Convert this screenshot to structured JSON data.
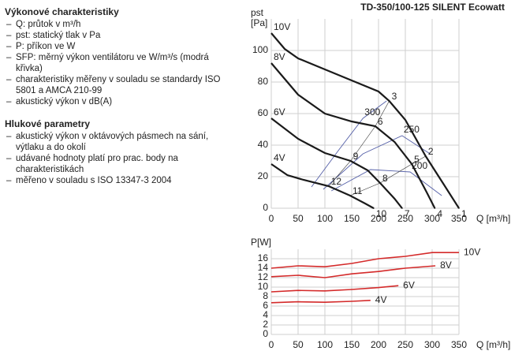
{
  "text": {
    "sections": [
      {
        "heading": "Výkonové charakteristiky",
        "items": [
          "Q: průtok v m³/h",
          "pst: statický tlak v Pa",
          "P: příkon ve W",
          "SFP: měrný výkon ventilátoru ve W/m³/s (modrá křivka)",
          "charakteristiky měřeny v souladu se standardy ISO 5801 a AMCA 210-99",
          "akustický výkon v dB(A)"
        ]
      },
      {
        "heading": "Hlukové parametry",
        "items": [
          "akustický výkon v oktávových pásmech na sání, výtlaku a do okolí",
          "udávané hodnoty platí pro prac. body na charakteristikách",
          "měřeno v souladu s ISO 13347-3 2004"
        ]
      }
    ]
  },
  "chart_data": [
    {
      "type": "line",
      "title": "TD-350/100-125 SILENT Ecowatt",
      "y_label": "pst",
      "y_unit": "[Pa]",
      "x_label": "Q [m³/h]",
      "xlim": [
        0,
        350
      ],
      "xticks": [
        0,
        50,
        100,
        150,
        200,
        250,
        300,
        350
      ],
      "ylim": [
        0,
        120
      ],
      "yticks": [
        0,
        20,
        40,
        60,
        80,
        100
      ],
      "grid": true,
      "label_position": "start",
      "series": [
        {
          "name": "10V",
          "color": "#1a1a1a",
          "x": [
            0,
            25,
            50,
            100,
            150,
            200,
            220,
            250,
            288,
            320,
            350
          ],
          "values": [
            111,
            101,
            95,
            88,
            81,
            74,
            68,
            56,
            33,
            16,
            0
          ]
        },
        {
          "name": "8V",
          "color": "#1a1a1a",
          "x": [
            0,
            50,
            100,
            150,
            194,
            230,
            262,
            290,
            305
          ],
          "values": [
            92,
            72,
            60,
            55,
            52,
            42,
            28,
            10,
            0
          ]
        },
        {
          "name": "6V",
          "color": "#1a1a1a",
          "x": [
            0,
            50,
            100,
            148,
            180,
            203,
            230,
            244
          ],
          "values": [
            57,
            44,
            35,
            30,
            24,
            16,
            6,
            0
          ]
        },
        {
          "name": "4V",
          "color": "#1a1a1a",
          "x": [
            0,
            30,
            60,
            107,
            147,
            175,
            191
          ],
          "values": [
            28,
            21,
            18,
            14,
            8,
            3,
            0
          ]
        }
      ],
      "sfp_curves": [
        {
          "name": "300",
          "color": "#5560a8",
          "x": [
            75,
            126,
            171,
            215
          ],
          "values": [
            13.5,
            37,
            57,
            68
          ]
        },
        {
          "name": "250",
          "color": "#5560a8",
          "x": [
            97,
            171,
            244,
            296
          ],
          "values": [
            12,
            34.5,
            46,
            34.5
          ]
        },
        {
          "name": "200",
          "color": "#5560a8",
          "x": [
            112,
            185,
            259,
            318
          ],
          "values": [
            11,
            24.5,
            23,
            8
          ]
        }
      ],
      "points": {
        "labels": [
          "1",
          "2",
          "3",
          "4",
          "5",
          "6",
          "7",
          "8",
          "9",
          "10",
          "11",
          "12"
        ],
        "x": [
          350,
          288,
          220,
          305,
          262,
          194,
          244,
          203,
          148,
          191,
          147,
          107
        ],
        "y": [
          0,
          33,
          68,
          0,
          28,
          52,
          0,
          16,
          30,
          0,
          8,
          14
        ]
      }
    },
    {
      "type": "line",
      "y_label": "P[W]",
      "y_label_color": "#d42a2a",
      "x_label": "Q [m³/h]",
      "xlim": [
        0,
        350
      ],
      "xticks": [
        0,
        50,
        100,
        150,
        200,
        250,
        300,
        350
      ],
      "ylim": [
        0,
        18
      ],
      "yticks": [
        0,
        2,
        4,
        6,
        8,
        10,
        12,
        14,
        16
      ],
      "grid": true,
      "label_position": "end",
      "series": [
        {
          "name": "10V",
          "color": "#d42a2a",
          "x": [
            0,
            50,
            100,
            150,
            200,
            250,
            300,
            350
          ],
          "values": [
            14,
            14.5,
            14.3,
            15,
            16,
            16.5,
            17.3,
            17.3
          ]
        },
        {
          "name": "8V",
          "color": "#d42a2a",
          "x": [
            0,
            50,
            100,
            150,
            200,
            250,
            306
          ],
          "values": [
            12.2,
            12.5,
            12,
            12.8,
            13.3,
            14,
            14.5
          ]
        },
        {
          "name": "6V",
          "color": "#d42a2a",
          "x": [
            0,
            50,
            100,
            150,
            200,
            237
          ],
          "values": [
            9,
            9.3,
            9.2,
            9.5,
            9.9,
            10.3
          ]
        },
        {
          "name": "4V",
          "color": "#d42a2a",
          "x": [
            0,
            50,
            100,
            150,
            185
          ],
          "values": [
            6.7,
            6.9,
            6.8,
            7,
            7.2
          ]
        }
      ]
    }
  ]
}
